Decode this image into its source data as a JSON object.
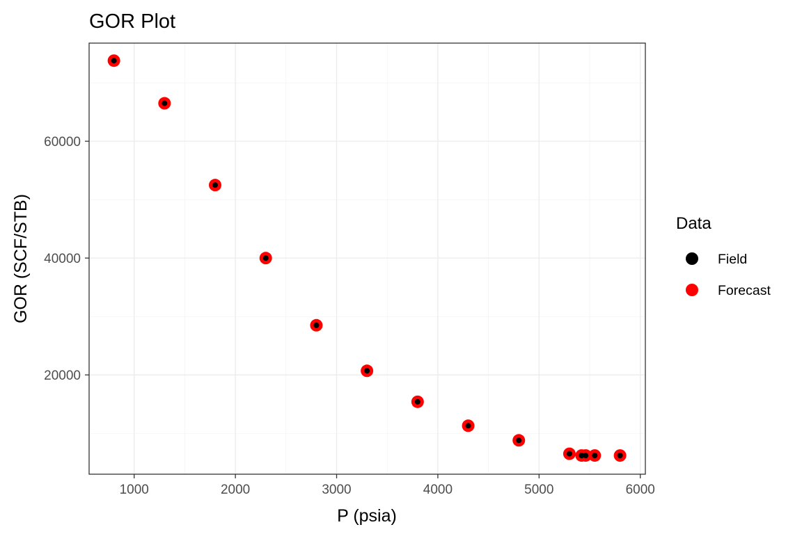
{
  "chart_data": {
    "type": "scatter",
    "title": "GOR Plot",
    "xlabel": "P (psia)",
    "ylabel": "GOR (SCF/STB)",
    "xlim": [
      555,
      6050
    ],
    "ylim": [
      3000,
      76800
    ],
    "x_ticks": [
      1000,
      2000,
      3000,
      4000,
      5000,
      6000
    ],
    "x_tick_labels": [
      "1000",
      "2000",
      "3000",
      "4000",
      "5000",
      "6000"
    ],
    "x_minor_ticks": [
      1500,
      2500,
      3500,
      4500,
      5500
    ],
    "y_ticks": [
      20000,
      40000,
      60000
    ],
    "y_tick_labels": [
      "20000",
      "40000",
      "60000"
    ],
    "y_minor_ticks": [
      10000,
      30000,
      50000,
      70000
    ],
    "grid": true,
    "legend": {
      "title": "Data",
      "position": "right",
      "entries": [
        {
          "label": "Field",
          "color": "#000000"
        },
        {
          "label": "Forecast",
          "color": "#ff0000"
        }
      ]
    },
    "series": [
      {
        "name": "Forecast",
        "color": "#ff0000",
        "marker": "large-dot",
        "x": [
          800,
          1300,
          1800,
          2300,
          2800,
          3300,
          3800,
          4300,
          4800,
          5300,
          5420,
          5460,
          5550,
          5800
        ],
        "y": [
          73800,
          66500,
          52500,
          40000,
          28500,
          20700,
          15400,
          11300,
          8800,
          6500,
          6200,
          6200,
          6200,
          6200
        ]
      },
      {
        "name": "Field",
        "color": "#000000",
        "marker": "small-dot",
        "x": [
          800,
          1300,
          1800,
          2300,
          2800,
          3300,
          3800,
          4300,
          4800,
          5300,
          5420,
          5460,
          5550,
          5800
        ],
        "y": [
          73800,
          66500,
          52500,
          40000,
          28500,
          20700,
          15400,
          11300,
          8800,
          6500,
          6200,
          6200,
          6200,
          6200
        ]
      }
    ]
  }
}
